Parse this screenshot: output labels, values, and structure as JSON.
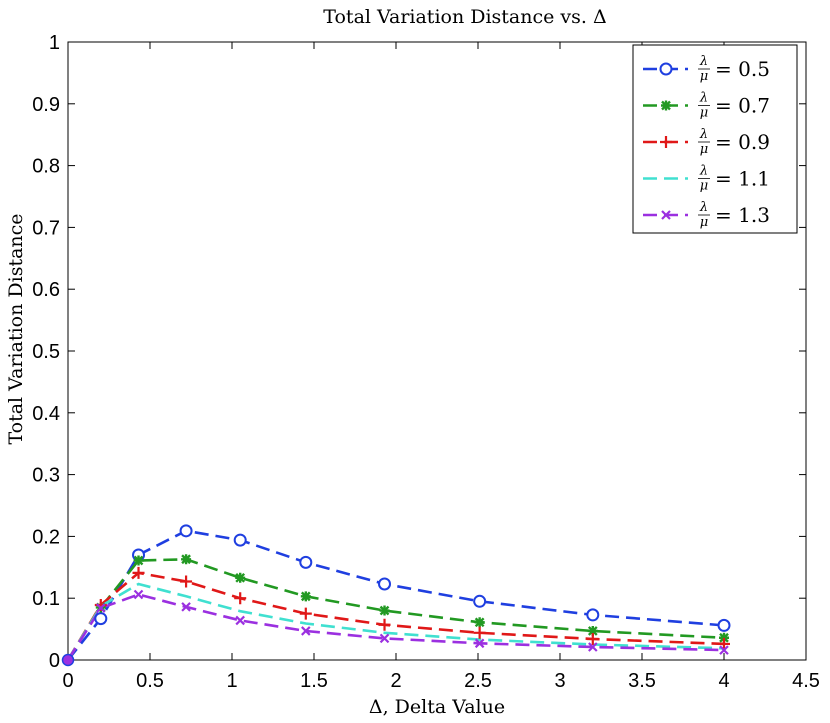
{
  "chart_data": {
    "type": "line",
    "title": "Total Variation Distance vs. Δ",
    "xlabel": "Δ, Delta Value",
    "ylabel": "Total Variation Distance",
    "xlim": [
      0,
      4.5
    ],
    "ylim": [
      0,
      1
    ],
    "xticks": [
      "0",
      "0.5",
      "1",
      "1.5",
      "2",
      "2.5",
      "3",
      "3.5",
      "4",
      "4.5"
    ],
    "yticks": [
      "0",
      "0.1",
      "0.2",
      "0.3",
      "0.4",
      "0.5",
      "0.6",
      "0.7",
      "0.8",
      "0.9",
      "1"
    ],
    "legend_position": "top-right",
    "x": [
      0,
      0.2,
      0.43,
      0.72,
      1.05,
      1.45,
      1.93,
      2.51,
      3.2,
      4.0
    ],
    "series": [
      {
        "name": "λ/μ = 0.5",
        "lambda": "λ",
        "mu": "μ",
        "value": "= 0.5",
        "color": "#1f3fe0",
        "marker": "circle",
        "values": [
          0,
          0.067,
          0.17,
          0.209,
          0.194,
          0.158,
          0.123,
          0.095,
          0.073,
          0.056
        ]
      },
      {
        "name": "λ/μ = 0.7",
        "lambda": "λ",
        "mu": "μ",
        "value": "= 0.7",
        "color": "#229922",
        "marker": "asterisk",
        "values": [
          0,
          0.085,
          0.161,
          0.163,
          0.133,
          0.103,
          0.08,
          0.061,
          0.047,
          0.036
        ]
      },
      {
        "name": "λ/μ = 0.9",
        "lambda": "λ",
        "mu": "μ",
        "value": "= 0.9",
        "color": "#e01818",
        "marker": "plus",
        "values": [
          0,
          0.089,
          0.141,
          0.127,
          0.1,
          0.075,
          0.057,
          0.044,
          0.034,
          0.026
        ]
      },
      {
        "name": "λ/μ = 1.1",
        "lambda": "λ",
        "mu": "μ",
        "value": "= 1.1",
        "color": "#40e0d0",
        "marker": "none",
        "values": [
          0,
          0.087,
          0.123,
          0.103,
          0.079,
          0.059,
          0.044,
          0.033,
          0.025,
          0.019
        ]
      },
      {
        "name": "λ/μ = 1.3",
        "lambda": "λ",
        "mu": "μ",
        "value": "= 1.3",
        "color": "#9b30e0",
        "marker": "cross",
        "values": [
          0,
          0.084,
          0.106,
          0.086,
          0.064,
          0.047,
          0.035,
          0.027,
          0.021,
          0.016
        ]
      }
    ]
  }
}
